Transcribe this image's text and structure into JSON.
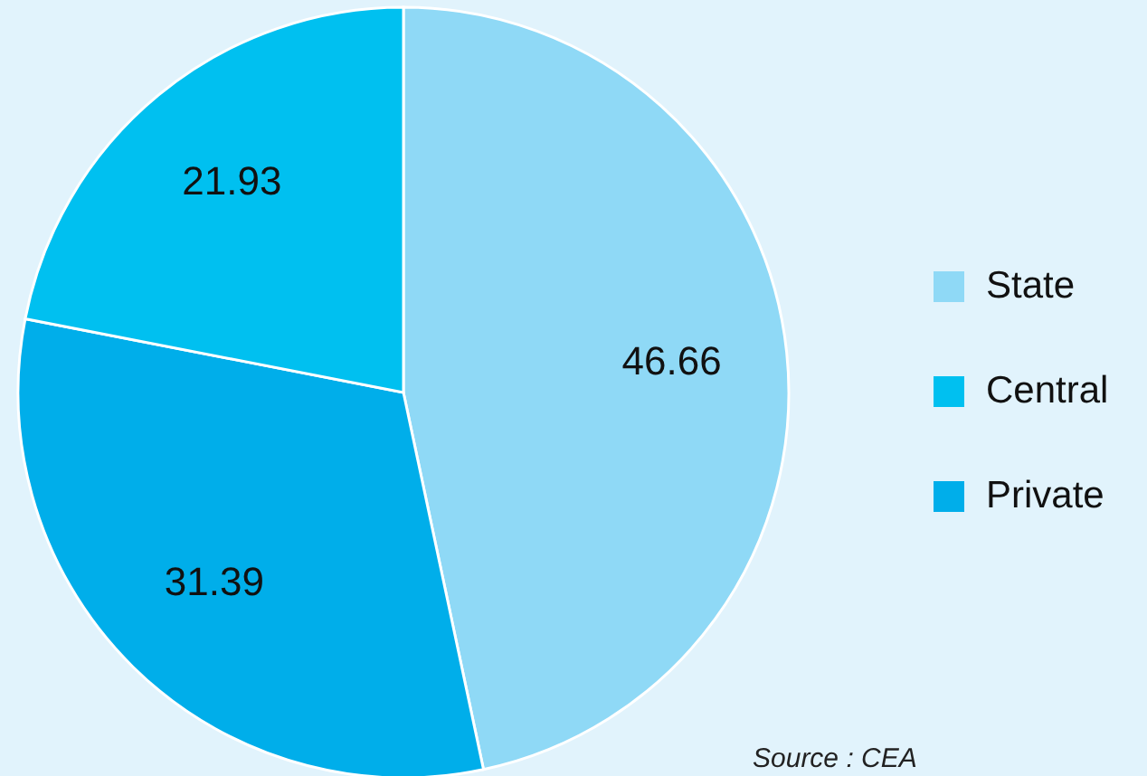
{
  "chart_data": {
    "type": "pie",
    "categories": [
      "State",
      "Private",
      "Central"
    ],
    "values": [
      46.66,
      31.39,
      21.93
    ],
    "colors": [
      "#8fd9f6",
      "#00aeea",
      "#00c0f0"
    ],
    "data_labels": true,
    "legend": "right",
    "annotations": [
      "Source : CEA"
    ]
  }
}
